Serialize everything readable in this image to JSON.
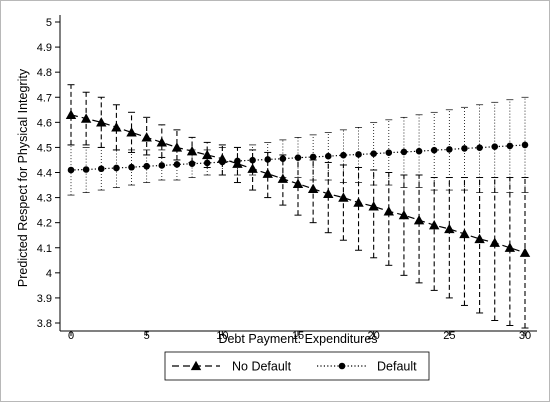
{
  "chart_data": {
    "type": "line",
    "xlabel": "Debt Payment: Expenditures",
    "ylabel": "Predicted Respect for Physical Integrity",
    "xlim": [
      0,
      30
    ],
    "ylim": [
      3.8,
      5.0
    ],
    "x_ticks": [
      0,
      5,
      10,
      15,
      20,
      25,
      30
    ],
    "y_ticks": [
      3.8,
      3.9,
      4.0,
      4.1,
      4.2,
      4.3,
      4.4,
      4.5,
      4.6,
      4.7,
      4.8,
      4.9,
      5.0
    ],
    "y_tick_labels": [
      "3.8",
      "3.9",
      "4",
      "4.1",
      "4.2",
      "4.3",
      "4.4",
      "4.5",
      "4.6",
      "4.7",
      "4.8",
      "4.9",
      "5"
    ],
    "grid": false,
    "legend_position": "bottom",
    "x": [
      0,
      1,
      2,
      3,
      4,
      5,
      6,
      7,
      8,
      9,
      10,
      11,
      12,
      13,
      14,
      15,
      16,
      17,
      18,
      19,
      20,
      21,
      22,
      23,
      24,
      25,
      26,
      27,
      28,
      29,
      30
    ],
    "series": [
      {
        "name": "No Default",
        "marker": "triangle",
        "line_style": "dashed",
        "color": "#000000",
        "values": [
          4.63,
          4.615,
          4.6,
          4.58,
          4.56,
          4.54,
          4.52,
          4.5,
          4.485,
          4.47,
          4.455,
          4.435,
          4.415,
          4.395,
          4.375,
          4.355,
          4.335,
          4.315,
          4.3,
          4.28,
          4.265,
          4.245,
          4.23,
          4.21,
          4.19,
          4.175,
          4.155,
          4.135,
          4.12,
          4.1,
          4.08
        ],
        "ci_low": [
          4.51,
          4.51,
          4.5,
          4.49,
          4.48,
          4.47,
          4.46,
          4.45,
          4.44,
          4.42,
          4.39,
          4.36,
          4.33,
          4.3,
          4.27,
          4.23,
          4.2,
          4.16,
          4.13,
          4.09,
          4.06,
          4.03,
          3.99,
          3.96,
          3.93,
          3.9,
          3.87,
          3.84,
          3.81,
          3.79,
          3.78
        ],
        "ci_high": [
          4.75,
          4.72,
          4.7,
          4.67,
          4.64,
          4.62,
          4.59,
          4.57,
          4.54,
          4.52,
          4.51,
          4.5,
          4.49,
          4.48,
          4.47,
          4.46,
          4.45,
          4.44,
          4.43,
          4.42,
          4.41,
          4.4,
          4.39,
          4.39,
          4.38,
          4.38,
          4.38,
          4.38,
          4.38,
          4.38,
          4.38
        ]
      },
      {
        "name": "Default",
        "marker": "circle",
        "line_style": "dotted",
        "color": "#000000",
        "values": [
          4.41,
          4.412,
          4.415,
          4.418,
          4.421,
          4.425,
          4.428,
          4.432,
          4.435,
          4.438,
          4.442,
          4.446,
          4.449,
          4.452,
          4.455,
          4.459,
          4.462,
          4.465,
          4.469,
          4.472,
          4.475,
          4.479,
          4.482,
          4.485,
          4.489,
          4.492,
          4.496,
          4.499,
          4.503,
          4.506,
          4.51
        ],
        "ci_low": [
          4.31,
          4.32,
          4.33,
          4.34,
          4.35,
          4.36,
          4.37,
          4.37,
          4.38,
          4.39,
          4.39,
          4.39,
          4.39,
          4.39,
          4.38,
          4.38,
          4.37,
          4.37,
          4.36,
          4.36,
          4.35,
          4.35,
          4.34,
          4.34,
          4.33,
          4.33,
          4.33,
          4.32,
          4.32,
          4.32,
          4.32
        ],
        "ci_high": [
          4.51,
          4.5,
          4.5,
          4.49,
          4.49,
          4.49,
          4.49,
          4.49,
          4.49,
          4.49,
          4.5,
          4.5,
          4.51,
          4.52,
          4.53,
          4.54,
          4.55,
          4.56,
          4.57,
          4.58,
          4.6,
          4.61,
          4.62,
          4.63,
          4.64,
          4.65,
          4.66,
          4.67,
          4.68,
          4.69,
          4.7
        ]
      }
    ]
  }
}
